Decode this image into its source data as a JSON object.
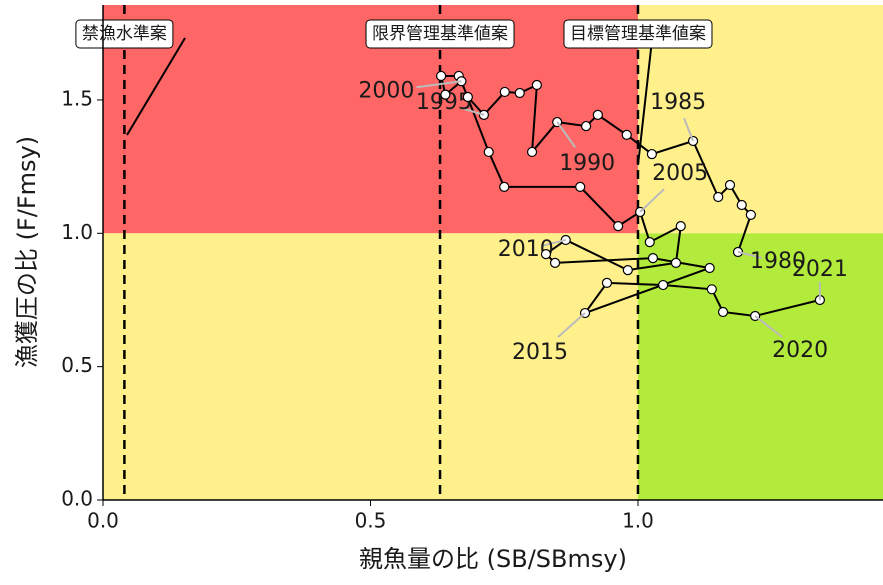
{
  "chart_data": {
    "type": "kobe",
    "x_label": "親魚量の比 (SB/SBmsy)",
    "y_label": "漁獲圧の比 (F/Fmsy)",
    "xlim": [
      0,
      1.458
    ],
    "ylim": [
      0,
      1.856
    ],
    "xticks": [
      {
        "value": 0,
        "label": "0.0"
      },
      0.5,
      {
        "value": 1,
        "label": "1.0"
      }
    ],
    "yticks": [
      {
        "value": 0,
        "label": "0.0"
      },
      0.5,
      {
        "value": 1,
        "label": "1.0"
      },
      1.5
    ],
    "zone_colors": {
      "overfished_overfishing": "#ff6666",
      "caution": "#fff08c",
      "healthy": "#b3eb3c"
    },
    "reference_lines": [
      {
        "name": "禁漁水準案",
        "value": 0.04
      },
      {
        "name": "限界管理基準値案",
        "value": 0.63
      },
      {
        "name": "目標管理基準値案",
        "value": 1.0
      }
    ],
    "x": [
      1.187,
      1.211,
      1.194,
      1.172,
      1.15,
      1.103,
      1.026,
      0.979,
      0.925,
      0.903,
      0.849,
      0.802,
      0.811,
      0.779,
      0.751,
      0.712,
      0.682,
      0.665,
      0.632,
      0.64,
      0.67,
      0.721,
      0.75,
      0.892,
      0.963,
      1.004,
      1.022,
      1.08,
      1.071,
      0.981,
      0.865,
      0.828,
      0.845,
      1.028,
      1.134,
      0.901,
      0.942,
      1.047,
      1.138,
      1.159,
      1.219,
      1.34
    ],
    "values": [
      0.93,
      1.069,
      1.106,
      1.181,
      1.136,
      1.346,
      1.297,
      1.369,
      1.444,
      1.402,
      1.417,
      1.305,
      1.556,
      1.526,
      1.53,
      1.444,
      1.511,
      1.59,
      1.59,
      1.52,
      1.57,
      1.305,
      1.174,
      1.174,
      1.027,
      1.08,
      0.967,
      1.027,
      0.889,
      0.862,
      0.975,
      0.922,
      0.889,
      0.907,
      0.87,
      0.701,
      0.814,
      0.806,
      0.79,
      0.705,
      0.69,
      0.75
    ],
    "point_labels": [
      "1980",
      null,
      null,
      null,
      null,
      "1985",
      null,
      null,
      null,
      null,
      "1990",
      null,
      null,
      null,
      null,
      "1995",
      null,
      null,
      null,
      null,
      "2000",
      null,
      null,
      null,
      null,
      "2005",
      null,
      null,
      null,
      null,
      "2010",
      null,
      null,
      null,
      null,
      "2015",
      null,
      null,
      null,
      null,
      "2020",
      "2021"
    ]
  }
}
